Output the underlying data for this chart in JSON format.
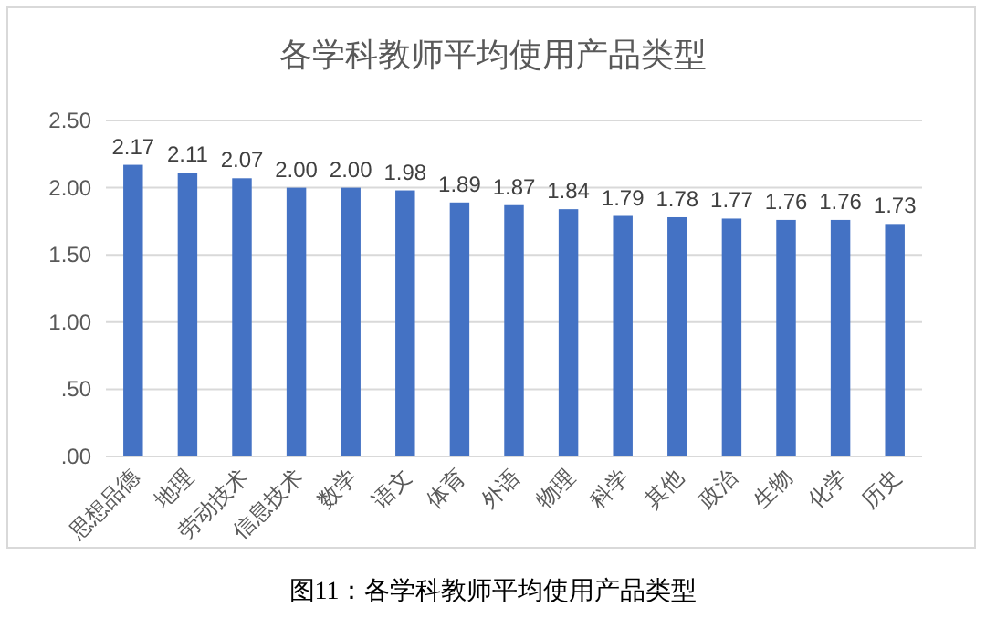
{
  "chart_data": {
    "type": "bar",
    "title": "各学科教师平均使用产品类型",
    "categories": [
      "思想品德",
      "地理",
      "劳动技术",
      "信息技术",
      "数学",
      "语文",
      "体育",
      "外语",
      "物理",
      "科学",
      "其他",
      "政治",
      "生物",
      "化学",
      "历史"
    ],
    "values": [
      2.17,
      2.11,
      2.07,
      2.0,
      2.0,
      1.98,
      1.89,
      1.87,
      1.84,
      1.79,
      1.78,
      1.77,
      1.76,
      1.76,
      1.73
    ],
    "value_labels": [
      "2.17",
      "2.11",
      "2.07",
      "2.00",
      "2.00",
      "1.98",
      "1.89",
      "1.87",
      "1.84",
      "1.79",
      "1.78",
      "1.77",
      "1.76",
      "1.76",
      "1.73"
    ],
    "color": "#4472c4",
    "ylim": [
      0,
      2.5
    ],
    "yticks": [
      {
        "value": 0,
        "label": ".00"
      },
      {
        "value": 0.5,
        "label": ".50"
      },
      {
        "value": 1,
        "label": "1.00"
      },
      {
        "value": 1.5,
        "label": "1.50"
      },
      {
        "value": 2,
        "label": "2.00"
      },
      {
        "value": 2.5,
        "label": "2.50"
      }
    ],
    "grid": "y",
    "annotations": [
      "图11：各学科教师平均使用产品类型"
    ]
  }
}
